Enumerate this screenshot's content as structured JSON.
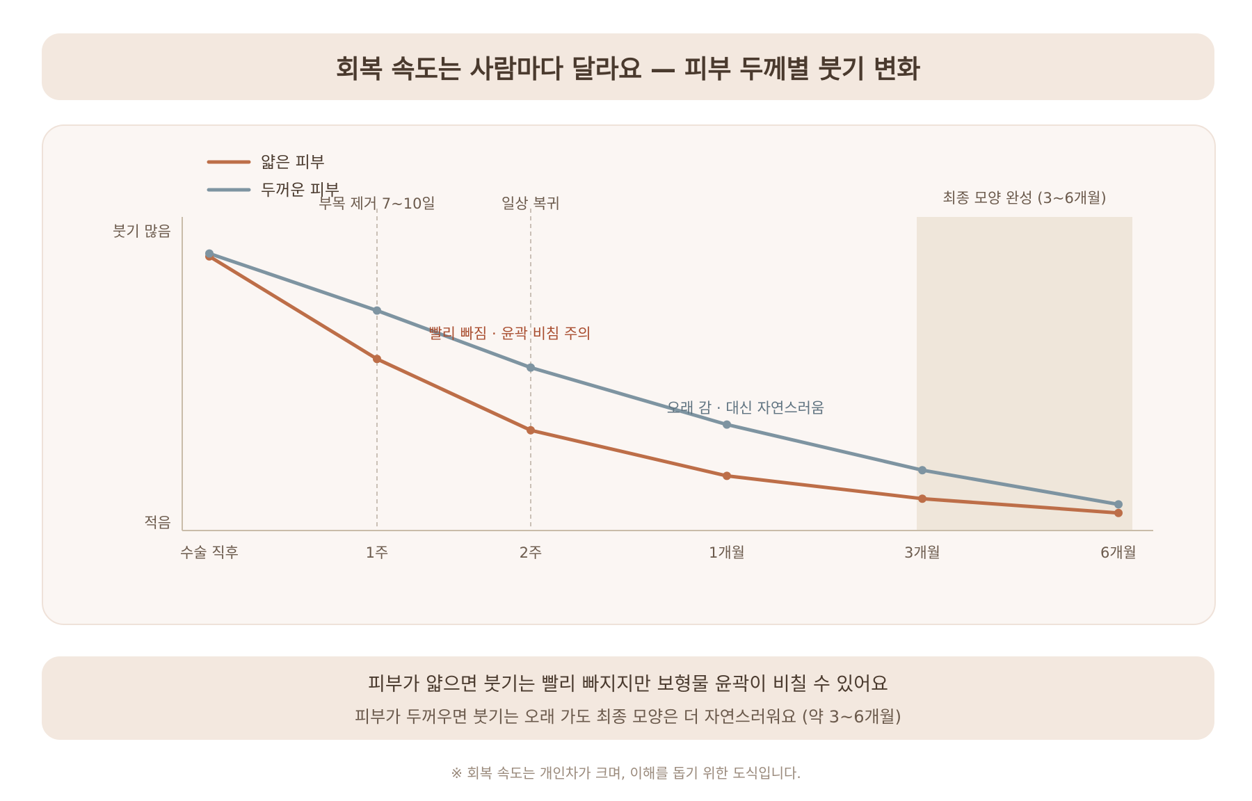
{
  "title": "회복 속도는 사람마다 달라요 — 피부 두께별 붓기 변화",
  "chart_data": {
    "type": "line",
    "categories": [
      "수술 직후",
      "1주",
      "2주",
      "1개월",
      "3개월",
      "6개월"
    ],
    "x_positions": [
      0,
      7,
      14,
      30,
      90,
      180
    ],
    "ylabel_top": "붓기 많음",
    "ylabel_bottom": "적음",
    "ylim": [
      0,
      100
    ],
    "grid": false,
    "legend_position": "top-left",
    "series": [
      {
        "name": "얇은 피부",
        "color": "#bd6e48",
        "values": [
          93,
          57,
          32,
          16,
          8,
          3
        ]
      },
      {
        "name": "두꺼운 피부",
        "color": "#7e94a1",
        "values": [
          94,
          74,
          54,
          34,
          18,
          6
        ]
      }
    ],
    "events": [
      {
        "label": "부목 제거 7~10일",
        "category_index": 1
      },
      {
        "label": "일상 복귀",
        "category_index": 2
      }
    ],
    "highlight": {
      "label": "최종 모양 완성 (3~6개월)",
      "from_index": 4,
      "to_index": 5,
      "color": "#efe6da"
    },
    "annotations": [
      {
        "text": "빨리 빠짐 · 윤곽 비침 주의",
        "series_index": 0,
        "color": "#a94e30"
      },
      {
        "text": "오래 감 · 대신 자연스러움",
        "series_index": 1,
        "color": "#5f7380"
      }
    ]
  },
  "summary": {
    "line1": "피부가 얇으면 붓기는 빨리 빠지지만 보형물 윤곽이 비칠 수 있어요",
    "line2": "피부가 두꺼우면 붓기는 오래 가도 최종 모양은 더 자연스러워요 (약 3~6개월)"
  },
  "footnote": "※ 회복 속도는 개인차가 크며, 이해를 돕기 위한 도식입니다."
}
